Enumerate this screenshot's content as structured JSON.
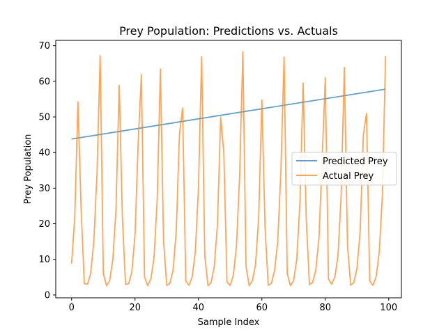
{
  "chart_data": {
    "type": "line",
    "title": "Prey Population: Predictions vs. Actuals",
    "xlabel": "Sample Index",
    "ylabel": "Prey Population",
    "xlim": [
      -5,
      104
    ],
    "ylim": [
      -0.8,
      71.5
    ],
    "xticks": [
      "0",
      "20",
      "40",
      "60",
      "80",
      "100"
    ],
    "yticks": [
      "0",
      "10",
      "20",
      "30",
      "40",
      "50",
      "60",
      "70"
    ],
    "grid": false,
    "legend_position": "center-right",
    "series": [
      {
        "name": "Predicted Prey",
        "color": "#1f77b4",
        "x": [
          0,
          99
        ],
        "values": [
          43.8,
          57.8
        ]
      },
      {
        "name": "Actual Prey",
        "color": "#ff7f0e",
        "x": [
          0,
          1,
          2,
          3,
          4,
          5,
          6,
          7,
          8,
          9,
          10,
          11,
          12,
          13,
          14,
          15,
          16,
          17,
          18,
          19,
          20,
          21,
          22,
          23,
          24,
          25,
          26,
          27,
          28,
          29,
          30,
          31,
          32,
          33,
          34,
          35,
          36,
          37,
          38,
          39,
          40,
          41,
          42,
          43,
          44,
          45,
          46,
          47,
          48,
          49,
          50,
          51,
          52,
          53,
          54,
          55,
          56,
          57,
          58,
          59,
          60,
          61,
          62,
          63,
          64,
          65,
          66,
          67,
          68,
          69,
          70,
          71,
          72,
          73,
          74,
          75,
          76,
          77,
          78,
          79,
          80,
          81,
          82,
          83,
          84,
          85,
          86,
          87,
          88,
          89,
          90,
          91,
          92,
          93,
          94,
          95,
          96,
          97,
          98,
          99
        ],
        "values": [
          8.8,
          22,
          54.2,
          24,
          3.2,
          3,
          6,
          15,
          34,
          67.2,
          6,
          2.6,
          4,
          10,
          24,
          58.9,
          22,
          2.9,
          3.2,
          6.5,
          17,
          43,
          61.9,
          5,
          2.6,
          4.5,
          10.5,
          27,
          63.4,
          15,
          2.7,
          3.3,
          7,
          18,
          45,
          52.5,
          4,
          2.7,
          5,
          12,
          30,
          66.9,
          11,
          2.6,
          3.5,
          8,
          20,
          50,
          40,
          3.6,
          2.7,
          5.5,
          14,
          34,
          68.3,
          8,
          2.6,
          4,
          8.5,
          22,
          54.8,
          19,
          2.7,
          3.3,
          6.8,
          15,
          35,
          66.8,
          6,
          2.6,
          4,
          10,
          26,
          59.5,
          21,
          2.9,
          3.5,
          7,
          16,
          38,
          61,
          4.5,
          3,
          5,
          11,
          28,
          63.9,
          14,
          2.7,
          3.5,
          7.5,
          18,
          45,
          51,
          4,
          2.7,
          5,
          12,
          28,
          67.1
        ]
      }
    ]
  }
}
